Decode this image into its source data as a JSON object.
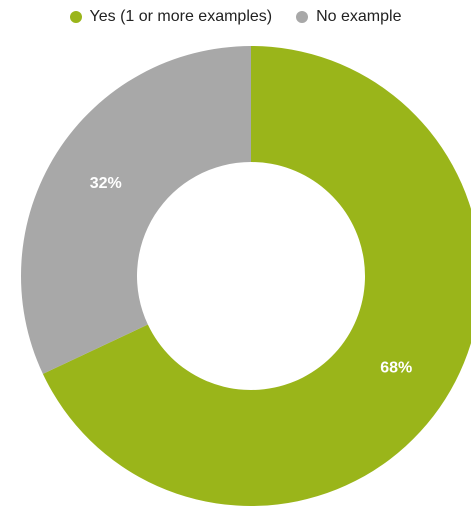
{
  "chart_data": {
    "type": "pie",
    "variant": "donut",
    "categories": [
      "Yes (1 or more examples)",
      "No example"
    ],
    "values": [
      68,
      32
    ],
    "labels": [
      "68%",
      "32%"
    ],
    "colors": [
      "#9ab51a",
      "#a8a8a8"
    ],
    "legend_position": "top",
    "title": "",
    "xlabel": "",
    "ylabel": ""
  }
}
